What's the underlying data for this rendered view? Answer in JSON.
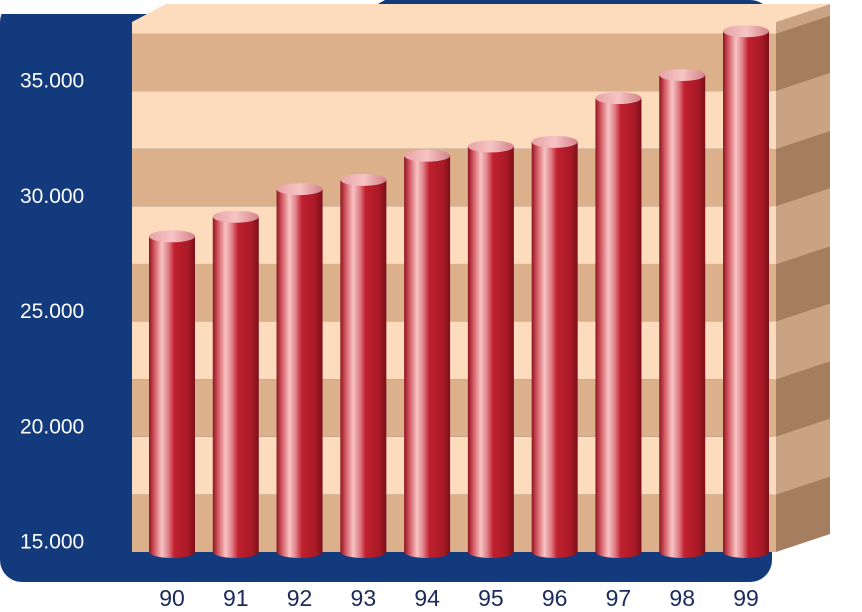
{
  "chart_data": {
    "type": "bar",
    "categories": [
      "90",
      "91",
      "92",
      "93",
      "94",
      "95",
      "96",
      "97",
      "98",
      "99"
    ],
    "values": [
      28200,
      29050,
      30250,
      30650,
      31700,
      32100,
      32300,
      34200,
      35200,
      37100
    ],
    "ylim": [
      14500,
      37500
    ],
    "yticks": [
      15000,
      20000,
      25000,
      30000,
      35000
    ],
    "ytick_labels": [
      "15.000",
      "20.000",
      "25.000",
      "30.000",
      "35.000"
    ],
    "title": "",
    "xlabel": "",
    "ylabel": "",
    "grid": "alternating horizontal bands",
    "colors": {
      "frame": "#123a7c",
      "band_light": "#fcdcbc",
      "band_dark": "#dcb08a",
      "side_light": "#c9a383",
      "side_dark": "#a47e5e",
      "bar": "#c0202e",
      "bar_highlight": "#f6c4c4",
      "y_tick_text": "#ffffff",
      "x_tick_text": "#1a2a5a"
    }
  }
}
